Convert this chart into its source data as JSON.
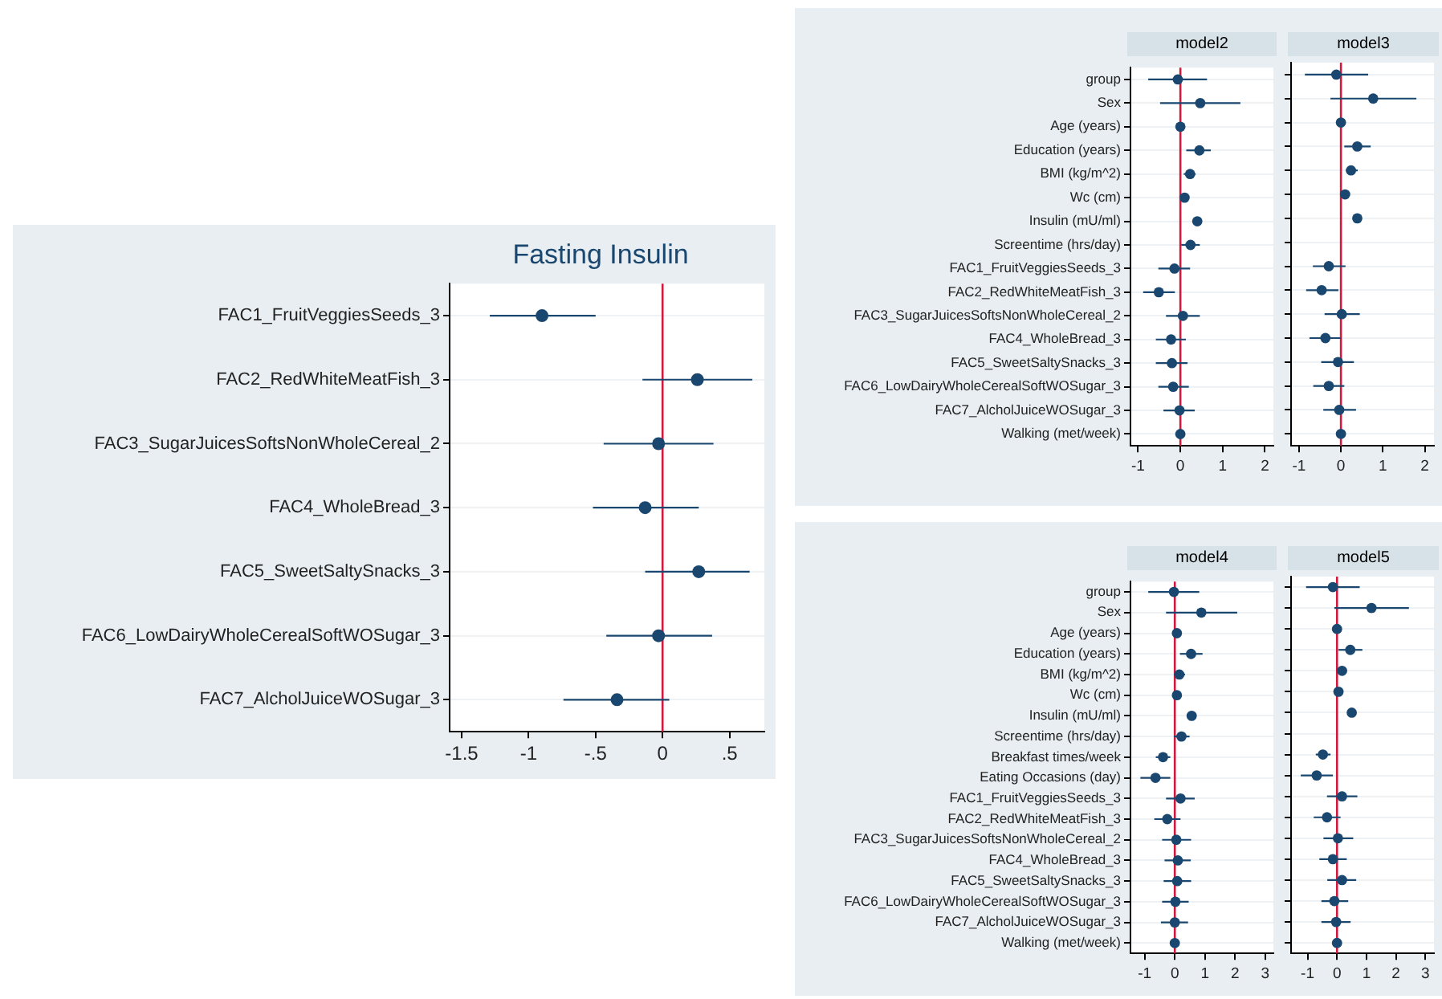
{
  "chart_data": [
    {
      "type": "scatter",
      "orientation": "horizontal",
      "title": "Fasting Insulin",
      "categories": [
        "FAC1_FruitVeggiesSeeds_3",
        "FAC2_RedWhiteMeatFish_3",
        "FAC3_SugarJuicesSoftsNonWholeCereal_2",
        "FAC4_WholeBread_3",
        "FAC5_SweetSaltySnacks_3",
        "FAC6_LowDairyWholeCerealSoftWOSugar_3",
        "FAC7_AlcholJuiceWOSugar_3"
      ],
      "values": [
        -0.9,
        0.26,
        -0.03,
        -0.13,
        0.27,
        -0.03,
        -0.34
      ],
      "errors": [
        [
          -1.29,
          -0.5
        ],
        [
          -0.15,
          0.67
        ],
        [
          -0.44,
          0.38
        ],
        [
          -0.52,
          0.27
        ],
        [
          -0.13,
          0.65
        ],
        [
          -0.42,
          0.37
        ],
        [
          -0.74,
          0.05
        ]
      ],
      "color": "#1a476f",
      "marker": "circle",
      "xlim": [
        -1.59,
        0.76
      ],
      "xticks": [
        {
          "value": -1.5,
          "label": "-1.5"
        },
        -1,
        {
          "value": -0.5,
          "label": "-.5"
        },
        0,
        {
          "value": 0.5,
          "label": ".5"
        }
      ],
      "ref_lines": [
        {
          "axis": "x",
          "value": 0,
          "color": "#d1193e"
        }
      ],
      "grid": "y",
      "legend": false
    },
    {
      "type": "scatter",
      "orientation": "horizontal",
      "title": "model2",
      "categories": [
        "group",
        "Sex",
        "Age (years)",
        "Education (years)",
        "BMI (kg/m^2)",
        "Wc (cm)",
        "Insulin (mU/ml)",
        "Screentime (hrs/day)",
        "FAC1_FruitVeggiesSeeds_3",
        "FAC2_RedWhiteMeatFish_3",
        "FAC3_SugarJuicesSoftsNonWholeCereal_2",
        "FAC4_WholeBread_3",
        "FAC5_SweetSaltySnacks_3",
        "FAC6_LowDairyWholeCerealSoftWOSugar_3",
        "FAC7_AlcholJuiceWOSugar_3",
        "Walking (met/week)"
      ],
      "values": [
        -0.06,
        0.47,
        0,
        0.45,
        0.23,
        0.1,
        0.4,
        0.24,
        -0.14,
        -0.51,
        0.06,
        -0.22,
        -0.2,
        -0.17,
        -0.02,
        0
      ],
      "errors": [
        [
          -0.76,
          0.63
        ],
        [
          -0.48,
          1.42
        ],
        null,
        [
          0.14,
          0.72
        ],
        [
          0.08,
          0.36
        ],
        null,
        null,
        [
          0.02,
          0.46
        ],
        [
          -0.52,
          0.23
        ],
        [
          -0.88,
          -0.13
        ],
        [
          -0.34,
          0.46
        ],
        [
          -0.58,
          0.13
        ],
        [
          -0.58,
          0.17
        ],
        [
          -0.52,
          0.2
        ],
        [
          -0.4,
          0.34
        ],
        null
      ],
      "color": "#1a476f",
      "marker": "circle",
      "xlim": [
        -1.18,
        2.2
      ],
      "xticks": [
        -1,
        0,
        1,
        2
      ],
      "ref_lines": [
        {
          "axis": "x",
          "value": 0,
          "color": "#d1193e"
        }
      ],
      "grid": "y",
      "legend": false
    },
    {
      "type": "scatter",
      "orientation": "horizontal",
      "title": "model3",
      "categories": [
        null,
        null,
        null,
        null,
        null,
        null,
        null,
        null,
        null,
        null,
        null,
        null,
        null,
        null,
        null,
        null
      ],
      "values": [
        -0.11,
        0.77,
        0,
        0.39,
        0.24,
        0.1,
        0.39,
        null,
        -0.29,
        -0.46,
        0.02,
        -0.37,
        -0.07,
        -0.29,
        -0.04,
        0
      ],
      "errors": [
        [
          -0.86,
          0.65
        ],
        [
          -0.25,
          1.8
        ],
        null,
        [
          0.08,
          0.71
        ],
        [
          0.12,
          0.4
        ],
        null,
        null,
        null,
        [
          -0.67,
          0.11
        ],
        [
          -0.83,
          -0.06
        ],
        [
          -0.39,
          0.45
        ],
        [
          -0.75,
          0
        ],
        [
          -0.47,
          0.31
        ],
        [
          -0.66,
          0.08
        ],
        [
          -0.42,
          0.36
        ],
        null
      ],
      "color": "#1a476f",
      "marker": "circle",
      "xlim": [
        -1.19,
        2.22
      ],
      "xticks": [
        -1,
        0,
        1,
        2
      ],
      "ref_lines": [
        {
          "axis": "x",
          "value": 0,
          "color": "#d1193e"
        }
      ],
      "grid": "y",
      "legend": false,
      "tick_labels": "x"
    },
    {
      "type": "scatter",
      "orientation": "horizontal",
      "title": "model4",
      "categories": [
        "group",
        "Sex",
        "Age (years)",
        "Education (years)",
        "BMI (kg/m^2)",
        "Wc (cm)",
        "Insulin (mU/ml)",
        "Screentime (hrs/day)",
        "Breakfast times/week",
        "Eating Occasions (day)",
        "FAC1_FruitVeggiesSeeds_3",
        "FAC2_RedWhiteMeatFish_3",
        "FAC3_SugarJuicesSoftsNonWholeCereal_2",
        "FAC4_WholeBread_3",
        "FAC5_SweetSaltySnacks_3",
        "FAC6_LowDairyWholeCerealSoftWOSugar_3",
        "FAC7_AlcholJuiceWOSugar_3",
        "Walking (met/week)"
      ],
      "values": [
        -0.03,
        0.88,
        0.07,
        0.54,
        0.15,
        0.07,
        0.56,
        0.22,
        -0.39,
        -0.64,
        0.19,
        -0.25,
        0.05,
        0.1,
        0.08,
        0.02,
        0,
        0
      ],
      "errors": [
        [
          -0.88,
          0.81
        ],
        [
          -0.29,
          2.07
        ],
        null,
        [
          0.17,
          0.92
        ],
        [
          -0.02,
          0.34
        ],
        null,
        null,
        [
          -0.03,
          0.49
        ],
        [
          -0.63,
          -0.15
        ],
        [
          -1.14,
          -0.15
        ],
        [
          -0.29,
          0.66
        ],
        [
          -0.68,
          0.19
        ],
        [
          -0.42,
          0.54
        ],
        [
          -0.34,
          0.53
        ],
        [
          -0.37,
          0.54
        ],
        [
          -0.42,
          0.46
        ],
        [
          -0.46,
          0.44
        ],
        null
      ],
      "color": "#1a476f",
      "marker": "circle",
      "xlim": [
        -1.47,
        3.27
      ],
      "xticks": [
        -1,
        0,
        1,
        2,
        3
      ],
      "ref_lines": [
        {
          "axis": "x",
          "value": 0,
          "color": "#d1193e"
        }
      ],
      "grid": "y",
      "legend": false
    },
    {
      "type": "scatter",
      "orientation": "horizontal",
      "title": "model5",
      "categories": [
        null,
        null,
        null,
        null,
        null,
        null,
        null,
        null,
        null,
        null,
        null,
        null,
        null,
        null,
        null,
        null,
        null,
        null
      ],
      "values": [
        -0.14,
        1.17,
        0,
        0.45,
        0.17,
        0.05,
        0.5,
        null,
        -0.48,
        -0.69,
        0.17,
        -0.34,
        0.03,
        -0.14,
        0.17,
        -0.09,
        -0.03,
        0
      ],
      "errors": [
        [
          -1.05,
          0.77
        ],
        [
          -0.09,
          2.44
        ],
        null,
        [
          0.05,
          0.86
        ],
        [
          0.03,
          0.33
        ],
        null,
        null,
        null,
        [
          -0.72,
          -0.22
        ],
        [
          -1.23,
          -0.14
        ],
        [
          -0.34,
          0.69
        ],
        [
          -0.79,
          0.12
        ],
        [
          -0.46,
          0.55
        ],
        [
          -0.6,
          0.33
        ],
        [
          -0.33,
          0.65
        ],
        [
          -0.53,
          0.38
        ],
        [
          -0.53,
          0.46
        ],
        null
      ],
      "color": "#1a476f",
      "marker": "circle",
      "xlim": [
        -1.56,
        3.29
      ],
      "xticks": [
        -1,
        0,
        1,
        2,
        3
      ],
      "ref_lines": [
        {
          "axis": "x",
          "value": 0,
          "color": "#d1193e"
        }
      ],
      "grid": "y",
      "legend": false,
      "tick_labels": "x"
    }
  ]
}
